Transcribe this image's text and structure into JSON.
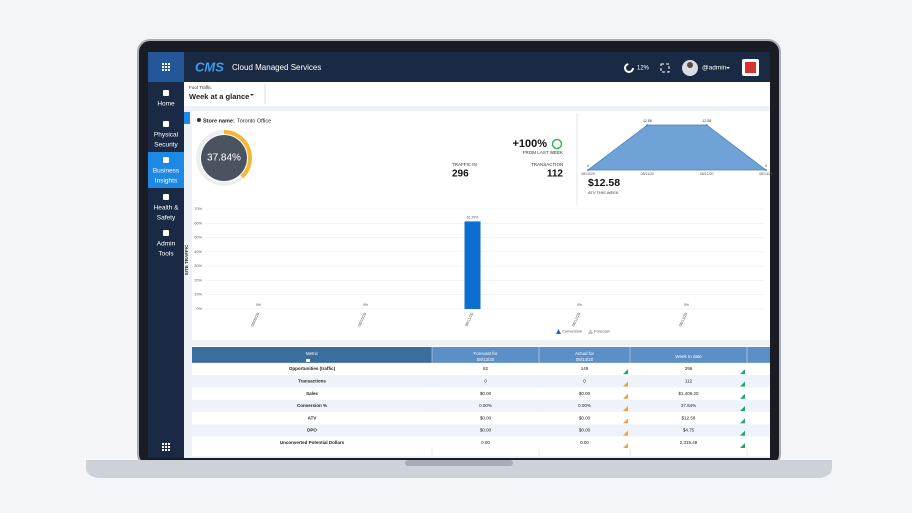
{
  "header": {
    "logo": "CMS",
    "title": "Cloud Managed Services",
    "progress": "12%",
    "user": "@admin"
  },
  "sidebar": {
    "items": [
      [
        "Home"
      ],
      [
        "Physical",
        "Security"
      ],
      [
        "Business",
        "Insights"
      ],
      [
        "Health &",
        "Safety"
      ],
      [
        "Admin",
        "Tools"
      ]
    ]
  },
  "filter": {
    "label": "Foot Traffic",
    "value": "Week at a glance"
  },
  "store": {
    "label": "Store name:",
    "name": "Toronto Office"
  },
  "kpis": {
    "conversion": {
      "value": 37.84,
      "label": "37.84%"
    },
    "change": "+100%",
    "change_label": "FROM LAST WEEK",
    "traffic_label": "TRAFFIC IN",
    "traffic": "296",
    "transaction_label": "TRANSACTION",
    "transaction": "112",
    "atv": "$12.58",
    "atv_label": "ATV THIS WEEK"
  },
  "atv_chart": {
    "type": "area",
    "x": [
      "08/10/20",
      "08/11/20",
      "08/12/20",
      "08/13/20"
    ],
    "values": [
      0,
      12.58,
      12.58,
      0
    ],
    "color": "#6fa3d8",
    "ylim": [
      0,
      14
    ]
  },
  "traffic_chart": {
    "type": "bar",
    "y_label": "SITE TRAFFIC",
    "categories": [
      "08/09/20",
      "08/10/20",
      "08/11/20",
      "08/12/20",
      "08/13/20"
    ],
    "values": [
      0,
      0,
      61.29,
      0,
      0
    ],
    "value_labels": [
      "0%",
      "0%",
      "61.29%",
      "0%",
      "0%"
    ],
    "color": "#0a6fd0",
    "ylim": [
      0,
      70
    ],
    "yticks": [
      {
        "value": 0,
        "label": "0%"
      },
      {
        "value": 10,
        "label": "10%"
      },
      {
        "value": 20,
        "label": "20%"
      },
      {
        "value": 30,
        "label": "30%"
      },
      {
        "value": 40,
        "label": "40%"
      },
      {
        "value": 50,
        "label": "50%"
      },
      {
        "value": 60,
        "label": "60%"
      },
      {
        "value": 70,
        "label": "70%"
      }
    ],
    "grid": true,
    "legend": [
      "Conversion",
      "Forecast"
    ]
  },
  "table": {
    "headers": [
      [
        "Metric"
      ],
      [
        "Forecast for",
        "08/13/20"
      ],
      [
        "Actual for",
        "08/13/20"
      ],
      [
        "Week to date"
      ]
    ],
    "rows": [
      [
        "Opportunities (traffic)",
        "82",
        "149",
        "296"
      ],
      [
        "Transactions",
        "0",
        "0",
        "112"
      ],
      [
        "Sales",
        "$0.00",
        "$0.00",
        "$1,406.20"
      ],
      [
        "Conversion %",
        "0.00%",
        "0.00%",
        "37.84%"
      ],
      [
        "ATV",
        "$0.00",
        "$0.00",
        "$12.58"
      ],
      [
        "DPO",
        "$0.00",
        "$0.00",
        "$4.75"
      ],
      [
        "Unconverted Potential Dollars",
        "0.00",
        "0.00",
        "2,315.49"
      ]
    ]
  }
}
